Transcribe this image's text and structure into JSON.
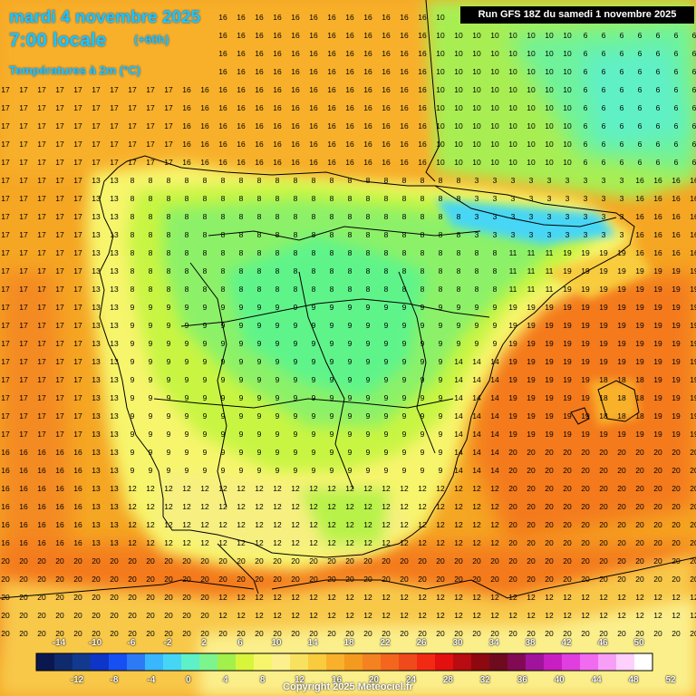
{
  "header": {
    "title": "mardi 4 novembre 2025",
    "time_label": "7:00 locale",
    "lead_time": "(+60h)",
    "variable": "Températures à 2m (°C)",
    "run_info": "Run GFS 18Z du samedi 1 novembre 2025",
    "copyright": "Copyright 2025 Meteociel.fr"
  },
  "legend": {
    "top_labels": [
      "-14",
      "-10",
      "-6",
      "-2",
      "2",
      "6",
      "10",
      "14",
      "18",
      "22",
      "26",
      "30",
      "34",
      "38",
      "42",
      "46",
      "50"
    ],
    "bottom_labels": [
      "-12",
      "-8",
      "-4",
      "0",
      "4",
      "8",
      "12",
      "16",
      "20",
      "24",
      "28",
      "32",
      "36",
      "40",
      "44",
      "48",
      "52"
    ],
    "colors": [
      "#0b1850",
      "#102a6e",
      "#13398f",
      "#0d35c8",
      "#1650f2",
      "#2d7af6",
      "#38b7ff",
      "#46d6f5",
      "#5ef0c6",
      "#7df58e",
      "#a2f04b",
      "#d7f53a",
      "#f7f56c",
      "#fbf08d",
      "#f9e160",
      "#f8cc3d",
      "#f9b12b",
      "#f49a1e",
      "#f58220",
      "#f4661e",
      "#f04a1c",
      "#f22a14",
      "#e3100f",
      "#b80b12",
      "#8e0810",
      "#6e0b1f",
      "#820a55",
      "#a0139c",
      "#c71fc1",
      "#e13ee0",
      "#f06bf0",
      "#f79ff7",
      "#fdd0fd",
      "#ffffff"
    ]
  },
  "regions": {
    "atlantic": "17",
    "north_atlantic": "16",
    "mediterranean": "19",
    "balearic": "20",
    "north_africa": "20",
    "south_sea": "20",
    "france_south": "10",
    "meseta_north": "8",
    "meseta_center": "9",
    "coast_west": "13",
    "andalusia": "12",
    "catalonia": "11",
    "valencia": "14",
    "pyrenees": "3",
    "iberian": "6",
    "gulf_lion": "16",
    "bay_biscay": "16",
    "balearic_islands": "18",
    "algeria": "12"
  }
}
